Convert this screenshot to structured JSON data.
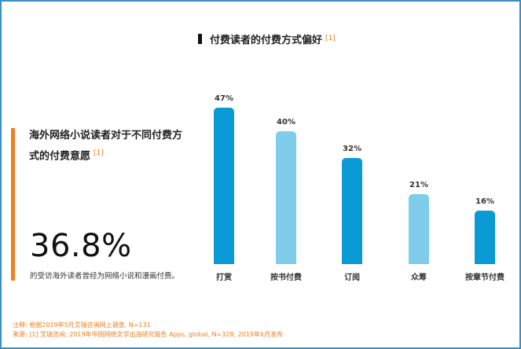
{
  "chart": {
    "title": "付费读者的付费方式偏好",
    "title_ref": "[1]"
  },
  "side": {
    "heading": "海外网络小说读者对于不同付费方式的付费意愿",
    "heading_ref": "[1]",
    "stat_value": "36.8%",
    "stat_desc": "的受访海外读者曾经为网络小说和漫画付费。"
  },
  "footnotes": {
    "note": "注释: 根据2019年5月艾瑞咨询网上调查, N=131",
    "source": "来源: [1] 艾瑞咨询, 2019年中国网络文学出海研究报告 Apps, global, N=328; 2019年6月发布"
  },
  "colors": {
    "dark_blue": "#0a9ad6",
    "light_blue": "#7fcdea",
    "orange": "#f07f1e",
    "frame": "#3a8fc6"
  },
  "chart_data": {
    "type": "bar",
    "title": "付费读者的付费方式偏好",
    "categories": [
      "打赏",
      "按书付费",
      "订阅",
      "众筹",
      "按章节付费"
    ],
    "values": [
      47,
      40,
      32,
      21,
      16
    ],
    "value_labels": [
      "47%",
      "40%",
      "32%",
      "21%",
      "16%"
    ],
    "bar_colors": [
      "#0a9ad6",
      "#7fcdea",
      "#0a9ad6",
      "#7fcdea",
      "#0a9ad6"
    ],
    "xlabel": "",
    "ylabel": "",
    "ylim": [
      0,
      50
    ],
    "grid": false,
    "legend": false,
    "unit": "%"
  }
}
